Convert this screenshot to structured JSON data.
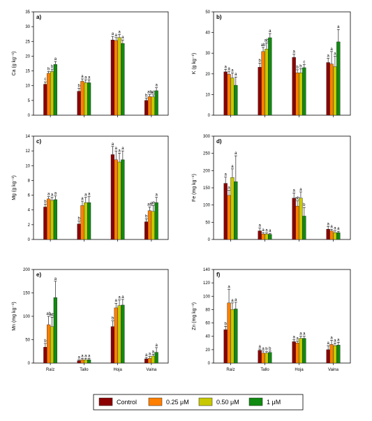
{
  "categories": [
    "Raíz",
    "Tallo",
    "Hoja",
    "Vaina"
  ],
  "legend": {
    "items": [
      {
        "label": "Control",
        "color": "#8b0000"
      },
      {
        "label": "0.25 μM",
        "color": "#ff7f00"
      },
      {
        "label": "0.50 μM",
        "color": "#c8c800"
      },
      {
        "label": "1 μM",
        "color": "#108a10"
      }
    ]
  },
  "chart_data": [
    {
      "type": "bar",
      "panel": "a)",
      "ylabel": "Ca (g kg⁻¹)",
      "ylim": [
        0,
        35
      ],
      "yticks": [
        0,
        5,
        10,
        15,
        20,
        25,
        30,
        35
      ],
      "show_x_labels": false,
      "categories": [
        "Raíz",
        "Tallo",
        "Hoja",
        "Vaina"
      ],
      "series": [
        {
          "name": "Control",
          "values": [
            10.5,
            8.1,
            25.5,
            5.0
          ],
          "errors": [
            0.8,
            1.0,
            1.2,
            0.8
          ],
          "letters": [
            "c",
            "b",
            "a",
            "b"
          ]
        },
        {
          "name": "0.25 μM",
          "values": [
            14.2,
            11.5,
            25.3,
            6.3
          ],
          "errors": [
            0.6,
            0.8,
            1.0,
            0.7
          ],
          "letters": [
            "b",
            "a",
            "a",
            "ab"
          ]
        },
        {
          "name": "0.50 μM",
          "values": [
            14.8,
            11.0,
            26.3,
            6.2
          ],
          "errors": [
            0.8,
            1.0,
            1.0,
            0.7
          ],
          "letters": [
            "b",
            "a",
            "a",
            "ab"
          ]
        },
        {
          "name": "1 μM",
          "values": [
            17.2,
            11.0,
            24.3,
            8.3
          ],
          "errors": [
            1.0,
            1.0,
            1.2,
            1.0
          ],
          "letters": [
            "a",
            "a",
            "a",
            "a"
          ]
        }
      ]
    },
    {
      "type": "bar",
      "panel": "b)",
      "ylabel": "K (g kg⁻¹)",
      "ylim": [
        0,
        50
      ],
      "yticks": [
        0,
        10,
        20,
        30,
        40,
        50
      ],
      "show_x_labels": false,
      "categories": [
        "Raíz",
        "Tallo",
        "Hoja",
        "Vaina"
      ],
      "series": [
        {
          "name": "Control",
          "values": [
            21.0,
            23.2,
            28.0,
            25.5
          ],
          "errors": [
            1.2,
            2.0,
            1.5,
            2.0
          ],
          "letters": [
            "a",
            "b",
            "a",
            "a"
          ]
        },
        {
          "name": "0.25 μM",
          "values": [
            19.8,
            30.8,
            20.5,
            24.8
          ],
          "errors": [
            1.5,
            2.0,
            1.5,
            6.0
          ],
          "letters": [
            "a",
            "ab",
            "b",
            "a"
          ]
        },
        {
          "name": "0.50 μM",
          "values": [
            18.0,
            32.0,
            20.5,
            23.5
          ],
          "errors": [
            2.5,
            3.0,
            2.0,
            5.0
          ],
          "letters": [
            "a",
            "ab",
            "b",
            "a"
          ]
        },
        {
          "name": "1 μM",
          "values": [
            14.5,
            37.5,
            23.0,
            35.5
          ],
          "errors": [
            4.0,
            2.0,
            1.5,
            6.0
          ],
          "letters": [
            "a",
            "a",
            "c",
            "a"
          ]
        }
      ]
    },
    {
      "type": "bar",
      "panel": "c)",
      "ylabel": "Mg (g kg⁻¹)",
      "ylim": [
        0,
        14
      ],
      "yticks": [
        0,
        2,
        4,
        6,
        8,
        10,
        12,
        14
      ],
      "show_x_labels": false,
      "categories": [
        "Raíz",
        "Tallo",
        "Hoja",
        "Vaina"
      ],
      "series": [
        {
          "name": "Control",
          "values": [
            4.4,
            2.1,
            11.5,
            2.4
          ],
          "errors": [
            0.4,
            0.4,
            1.1,
            0.4
          ],
          "letters": [
            "b",
            "b",
            "a",
            "b"
          ]
        },
        {
          "name": "0.25 μM",
          "values": [
            5.5,
            4.6,
            10.8,
            3.9
          ],
          "errors": [
            0.3,
            0.6,
            1.2,
            0.5
          ],
          "letters": [
            "a",
            "a",
            "a",
            "ab"
          ]
        },
        {
          "name": "0.50 μM",
          "values": [
            5.3,
            5.0,
            10.5,
            3.8
          ],
          "errors": [
            0.4,
            0.7,
            1.2,
            0.8
          ],
          "letters": [
            "a",
            "a",
            "a",
            "ab"
          ]
        },
        {
          "name": "1 μM",
          "values": [
            5.4,
            5.0,
            10.8,
            5.0
          ],
          "errors": [
            0.5,
            0.8,
            1.2,
            0.7
          ],
          "letters": [
            "a",
            "a",
            "a",
            "a"
          ]
        }
      ]
    },
    {
      "type": "bar",
      "panel": "d)",
      "ylabel": "Fe (mg kg⁻¹)",
      "ylim": [
        0,
        300
      ],
      "yticks": [
        0,
        50,
        100,
        150,
        200,
        250,
        300
      ],
      "show_x_labels": false,
      "categories": [
        "Raíz",
        "Tallo",
        "Hoja",
        "Vaina"
      ],
      "series": [
        {
          "name": "Control",
          "values": [
            163,
            25,
            120,
            30
          ],
          "errors": [
            18,
            8,
            15,
            8
          ],
          "letters": [
            "a",
            "a",
            "a",
            "a"
          ]
        },
        {
          "name": "0.25 μM",
          "values": [
            128,
            16,
            97,
            25
          ],
          "errors": [
            15,
            4,
            15,
            5
          ],
          "letters": [
            "a",
            "a",
            "ab",
            "a"
          ]
        },
        {
          "name": "0.50 μM",
          "values": [
            180,
            16,
            120,
            20
          ],
          "errors": [
            25,
            3,
            18,
            5
          ],
          "letters": [
            "a",
            "a",
            "a",
            "a"
          ]
        },
        {
          "name": "1 μM",
          "values": [
            168,
            15,
            68,
            20
          ],
          "errors": [
            75,
            3,
            25,
            4
          ],
          "letters": [
            "a",
            "a",
            "b",
            "a"
          ]
        }
      ]
    },
    {
      "type": "bar",
      "panel": "e)",
      "ylabel": "Mn (mg kg⁻¹)",
      "ylim": [
        0,
        200
      ],
      "yticks": [
        0,
        50,
        100,
        150,
        200
      ],
      "show_x_labels": true,
      "categories": [
        "Raíz",
        "Tallo",
        "Hoja",
        "Vaina"
      ],
      "series": [
        {
          "name": "Control",
          "values": [
            34,
            5,
            78,
            9
          ],
          "errors": [
            8,
            2,
            12,
            3
          ],
          "letters": [
            "b",
            "a",
            "b",
            "a"
          ]
        },
        {
          "name": "0.25 μM",
          "values": [
            82,
            7,
            118,
            10
          ],
          "errors": [
            18,
            3,
            10,
            4
          ],
          "letters": [
            "ab",
            "a",
            "a",
            "a"
          ]
        },
        {
          "name": "0.50 μM",
          "values": [
            78,
            7,
            123,
            15
          ],
          "errors": [
            20,
            3,
            12,
            4
          ],
          "letters": [
            "ab",
            "a",
            "a",
            "a"
          ]
        },
        {
          "name": "1 μM",
          "values": [
            140,
            7,
            124,
            23
          ],
          "errors": [
            35,
            3,
            12,
            10
          ],
          "letters": [
            "a",
            "a",
            "a",
            "a"
          ]
        }
      ]
    },
    {
      "type": "bar",
      "panel": "f)",
      "ylabel": "Zn (mg kg⁻¹)",
      "ylim": [
        0,
        140
      ],
      "yticks": [
        0,
        20,
        40,
        60,
        80,
        100,
        120,
        140
      ],
      "show_x_labels": true,
      "categories": [
        "Raíz",
        "Tallo",
        "Hoja",
        "Vaina"
      ],
      "series": [
        {
          "name": "Control",
          "values": [
            50,
            19,
            32,
            20
          ],
          "errors": [
            5,
            2,
            3,
            6
          ],
          "letters": [
            "b",
            "a",
            "a",
            "a"
          ]
        },
        {
          "name": "0.25 μM",
          "values": [
            90,
            15,
            30,
            28
          ],
          "errors": [
            20,
            3,
            3,
            6
          ],
          "letters": [
            "a",
            "a",
            "a",
            "a"
          ]
        },
        {
          "name": "0.50 μM",
          "values": [
            80,
            15,
            37,
            26
          ],
          "errors": [
            10,
            2,
            3,
            4
          ],
          "letters": [
            "a",
            "b",
            "a",
            "a"
          ]
        },
        {
          "name": "1 μM",
          "values": [
            81,
            16,
            37,
            27
          ],
          "errors": [
            10,
            2,
            3,
            4
          ],
          "letters": [
            "a",
            "b",
            "a",
            "a"
          ]
        }
      ]
    }
  ]
}
